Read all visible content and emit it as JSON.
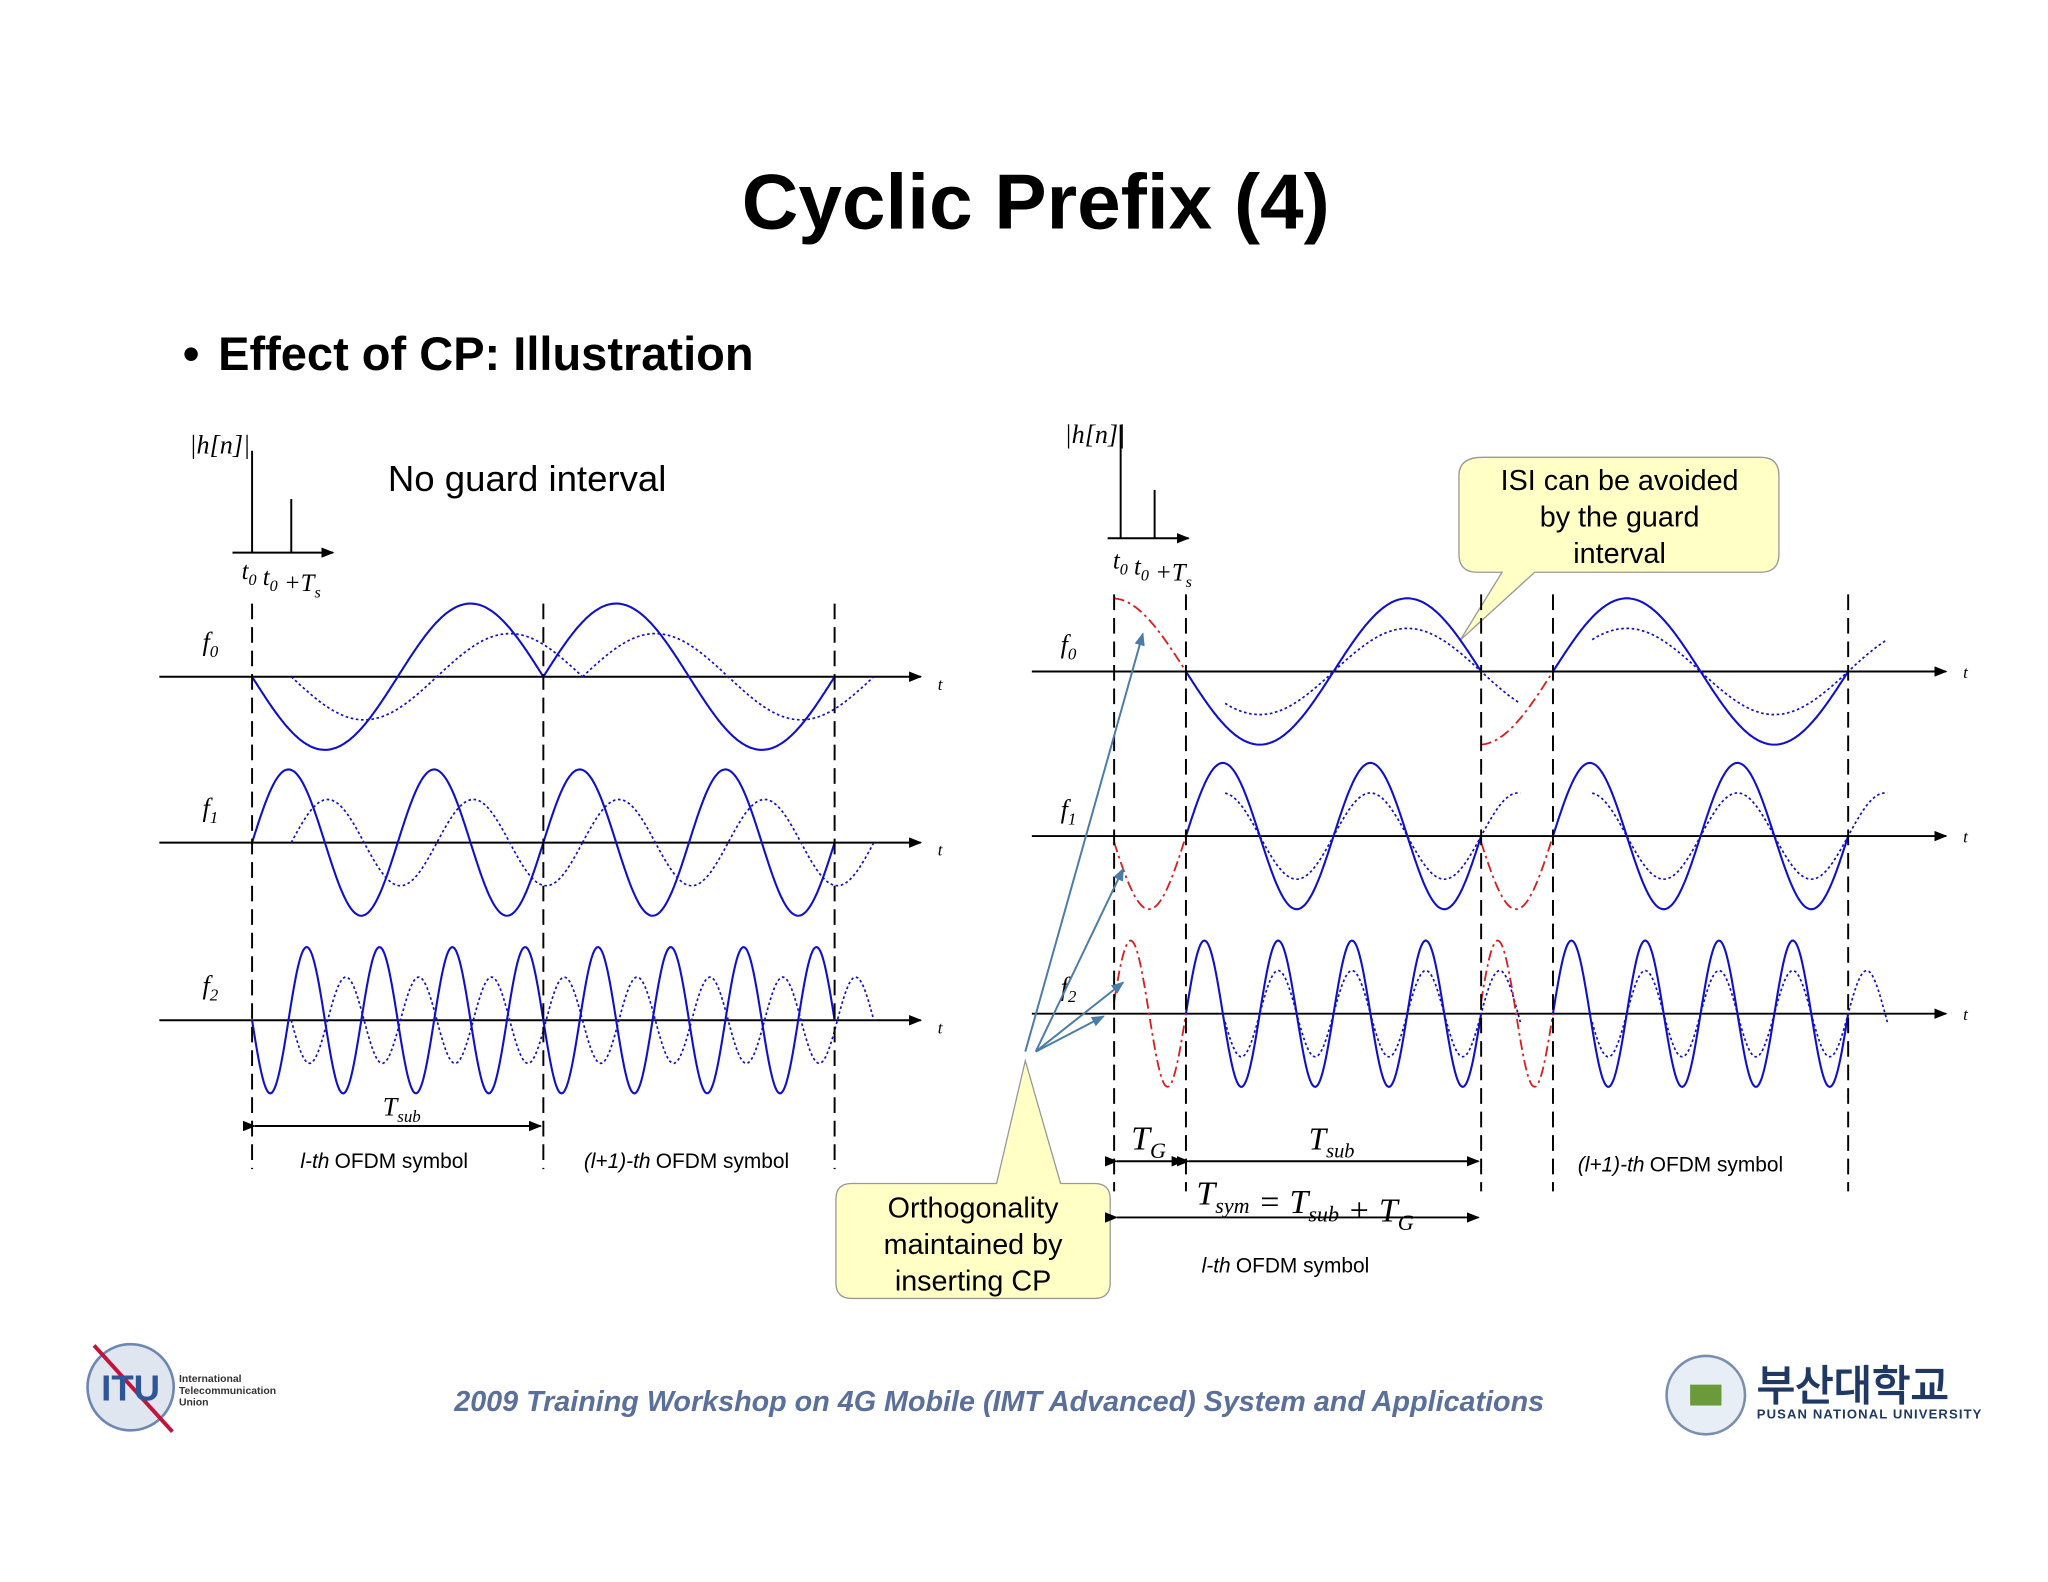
{
  "header": {
    "title": "Cyclic Prefix (4)",
    "bullet": "Effect of CP: Illustration"
  },
  "left": {
    "caption": "No guard interval",
    "channel_label": "|h[n]|",
    "delay_labels": [
      {
        "base": "t",
        "sub": "0"
      },
      {
        "base": "t",
        "sub": "0"
      },
      {
        "base": "+T",
        "sub": "s"
      }
    ],
    "freqs": [
      {
        "base": "f",
        "sub": "0"
      },
      {
        "base": "f",
        "sub": "1"
      },
      {
        "base": "f",
        "sub": "2"
      }
    ],
    "time_axis": [
      "t",
      "t",
      "t"
    ],
    "period": {
      "base": "T",
      "sub": "sub"
    },
    "symbols": [
      [
        "l-th",
        "OFDM symbol"
      ],
      [
        "(l+1)-th",
        "OFDM symbol"
      ]
    ]
  },
  "right": {
    "channel_label": "|h[n]|",
    "delay_labels": [
      {
        "base": "t",
        "sub": "0"
      },
      {
        "base": "t",
        "sub": "0"
      },
      {
        "base": "+T",
        "sub": "s"
      }
    ],
    "freqs": [
      {
        "base": "f",
        "sub": "0"
      },
      {
        "base": "f",
        "sub": "1"
      },
      {
        "base": "f",
        "sub": "2"
      }
    ],
    "time_axis": [
      "t",
      "t",
      "t"
    ],
    "guard": {
      "base": "T",
      "sub": "G"
    },
    "period": {
      "base": "T",
      "sub": "sub"
    },
    "equation": [
      {
        "base": "T",
        "sub": "sym"
      },
      {
        "base": "= T",
        "sub": "sub"
      },
      {
        "base": "+ T",
        "sub": "G"
      }
    ],
    "symbols": [
      [
        "l-th",
        "OFDM symbol"
      ],
      [
        "(l+1)-th",
        "OFDM symbol"
      ]
    ],
    "callout_isi": [
      "ISI can be avoided",
      "by the guard",
      "interval"
    ],
    "callout_cp": [
      "Orthogonality",
      "maintained by",
      "inserting CP"
    ]
  },
  "footer": {
    "itu_mark": "ITU",
    "itu_name": [
      "International",
      "Telecommunication",
      "Union"
    ],
    "workshop": "2009 Training Workshop on 4G Mobile (IMT Advanced) System and Applications",
    "university": "부산대학교",
    "university_en": "PUSAN NATIONAL UNIVERSITY"
  }
}
